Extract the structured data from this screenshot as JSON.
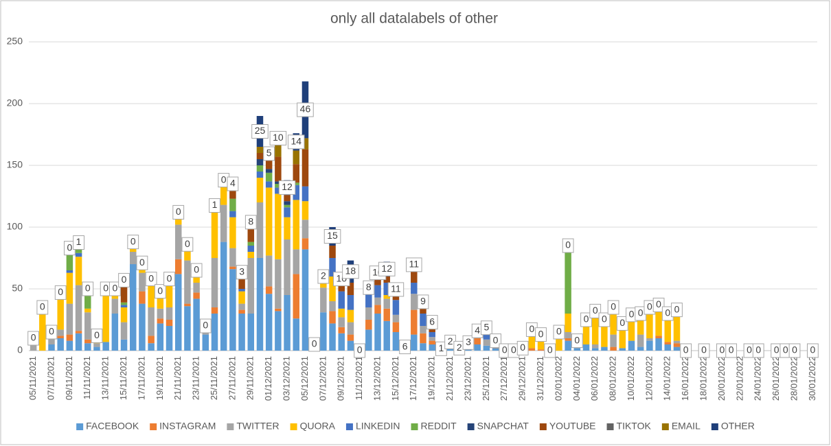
{
  "chart_data": {
    "type": "stacked_bar",
    "title": "only all datalabels of other",
    "categories": [
      "05/11/2021",
      null,
      "07/11/2021",
      null,
      "09/11/2021",
      null,
      "11/11/2021",
      null,
      "13/11/2021",
      null,
      "15/11/2021",
      null,
      "17/11/2021",
      null,
      "19/11/2021",
      null,
      "21/11/2021",
      null,
      "23/11/2021",
      null,
      "25/11/2021",
      null,
      "27/11/2021",
      null,
      "29/11/2021",
      null,
      "01/12/2021",
      null,
      "03/12/2021",
      null,
      "05/12/2021",
      null,
      "07/12/2021",
      null,
      "09/12/2021",
      null,
      "11/12/2021",
      null,
      "13/12/2021",
      null,
      "15/12/2021",
      null,
      "17/12/2021",
      null,
      "19/12/2021",
      null,
      "21/12/2021",
      null,
      "23/12/2021",
      null,
      "25/12/2021",
      null,
      "27/12/2021",
      null,
      "29/12/2021",
      null,
      "31/12/2021",
      null,
      "02/01/2022",
      null,
      "04/01/2022",
      null,
      "06/01/2022",
      null,
      "08/01/2022",
      null,
      "10/01/2022",
      null,
      "12/01/2022",
      null,
      "14/01/2022",
      null,
      "16/01/2022",
      null,
      "18/01/2022",
      null,
      "20/01/2022",
      null,
      "22/01/2022",
      null,
      "24/01/2022",
      null,
      "26/01/2022",
      null,
      "28/01/2022",
      null,
      "30/01/2022"
    ],
    "series": [
      {
        "name": "FACEBOOK",
        "color": "#5b9bd5",
        "values": [
          0,
          0,
          5,
          10,
          8,
          14,
          6,
          3,
          7,
          30,
          9,
          70,
          38,
          6,
          22,
          20,
          62,
          36,
          42,
          13,
          30,
          88,
          66,
          30,
          30,
          75,
          46,
          32,
          45,
          26,
          82,
          5,
          31,
          22,
          14,
          8,
          0,
          17,
          30,
          24,
          15,
          0,
          13,
          6,
          5,
          1,
          3,
          0,
          3,
          5,
          4,
          2,
          0,
          0,
          0,
          0,
          0,
          0,
          0,
          8,
          2,
          5,
          2,
          3,
          0,
          2,
          8,
          3,
          8,
          10,
          5,
          3,
          0,
          null,
          null,
          null,
          null,
          null,
          null,
          null,
          null,
          null,
          null,
          null,
          null,
          null,
          null
        ]
      },
      {
        "name": "INSTAGRAM",
        "color": "#ed7d31",
        "values": [
          0,
          0,
          0,
          2,
          5,
          2,
          3,
          0,
          0,
          0,
          0,
          0,
          10,
          6,
          4,
          5,
          12,
          2,
          5,
          0,
          5,
          0,
          2,
          3,
          0,
          0,
          6,
          2,
          0,
          36,
          9,
          0,
          0,
          10,
          5,
          5,
          0,
          8,
          7,
          10,
          8,
          0,
          20,
          8,
          3,
          0,
          0,
          0,
          0,
          5,
          0,
          2,
          0,
          0,
          0,
          2,
          1,
          0,
          0,
          2,
          0,
          0,
          0,
          0,
          3,
          0,
          0,
          0,
          0,
          2,
          2,
          3,
          0,
          null,
          null,
          null,
          null,
          null,
          null,
          null,
          null,
          null,
          null,
          null,
          null,
          null,
          null
        ]
      },
      {
        "name": "TWITTER",
        "color": "#a5a5a5",
        "values": [
          10,
          0,
          5,
          5,
          25,
          37,
          22,
          3,
          0,
          12,
          14,
          10,
          15,
          23,
          8,
          10,
          28,
          35,
          8,
          7,
          40,
          30,
          15,
          5,
          45,
          45,
          25,
          40,
          45,
          20,
          15,
          0,
          20,
          8,
          8,
          10,
          0,
          10,
          6,
          8,
          6,
          0,
          13,
          6,
          3,
          0,
          3,
          1,
          2,
          4,
          5,
          0,
          0,
          0,
          0,
          0,
          0,
          0,
          0,
          5,
          2,
          0,
          3,
          0,
          10,
          0,
          0,
          10,
          2,
          0,
          0,
          2,
          0,
          null,
          null,
          null,
          null,
          null,
          null,
          null,
          null,
          null,
          null,
          null,
          null,
          null,
          null
        ]
      },
      {
        "name": "QUORA",
        "color": "#ffc000",
        "values": [
          0,
          35,
          5,
          30,
          25,
          23,
          3,
          6,
          43,
          8,
          12,
          8,
          5,
          20,
          10,
          20,
          10,
          13,
          8,
          0,
          40,
          15,
          25,
          10,
          5,
          20,
          55,
          53,
          18,
          40,
          15,
          0,
          8,
          20,
          7,
          10,
          0,
          0,
          0,
          3,
          0,
          0,
          0,
          0,
          0,
          0,
          0,
          0,
          0,
          0,
          0,
          0,
          0,
          0,
          2,
          15,
          12,
          0,
          15,
          15,
          0,
          20,
          27,
          22,
          22,
          20,
          21,
          17,
          25,
          25,
          23,
          25,
          0,
          null,
          null,
          null,
          null,
          null,
          null,
          null,
          null,
          null,
          null,
          null,
          null,
          null,
          null
        ]
      },
      {
        "name": "LINKEDIN",
        "color": "#4472c4",
        "values": [
          0,
          0,
          0,
          0,
          2,
          3,
          0,
          0,
          0,
          0,
          2,
          0,
          3,
          0,
          0,
          0,
          0,
          0,
          2,
          0,
          2,
          5,
          5,
          2,
          5,
          5,
          5,
          5,
          8,
          12,
          12,
          0,
          0,
          15,
          14,
          12,
          0,
          12,
          10,
          10,
          12,
          0,
          9,
          10,
          4,
          0,
          0,
          0,
          0,
          0,
          4,
          0,
          0,
          0,
          0,
          0,
          0,
          0,
          0,
          0,
          0,
          0,
          0,
          0,
          0,
          0,
          0,
          0,
          0,
          0,
          0,
          0,
          0,
          null,
          null,
          null,
          null,
          null,
          null,
          null,
          null,
          null,
          null,
          null,
          null,
          null,
          null
        ]
      },
      {
        "name": "REDDIT",
        "color": "#70ad47",
        "values": [
          0,
          0,
          0,
          0,
          13,
          8,
          16,
          0,
          0,
          0,
          2,
          0,
          0,
          3,
          0,
          3,
          0,
          0,
          0,
          0,
          0,
          0,
          10,
          0,
          3,
          5,
          7,
          3,
          2,
          2,
          0,
          0,
          0,
          0,
          0,
          0,
          0,
          0,
          0,
          0,
          0,
          0,
          0,
          0,
          0,
          0,
          0,
          0,
          0,
          0,
          0,
          4,
          0,
          0,
          0,
          0,
          0,
          0,
          0,
          55,
          4,
          0,
          0,
          0,
          0,
          0,
          0,
          0,
          0,
          0,
          0,
          0,
          0,
          null,
          null,
          null,
          null,
          null,
          null,
          null,
          null,
          null,
          null,
          null,
          null,
          null,
          null
        ]
      },
      {
        "name": "SNAPCHAT",
        "color": "#264478",
        "values": [
          0,
          0,
          0,
          0,
          5,
          0,
          0,
          0,
          0,
          0,
          0,
          0,
          0,
          0,
          2,
          0,
          0,
          0,
          0,
          0,
          0,
          0,
          0,
          0,
          0,
          5,
          3,
          2,
          3,
          0,
          0,
          0,
          0,
          0,
          0,
          0,
          0,
          0,
          0,
          0,
          0,
          0,
          0,
          0,
          0,
          0,
          0,
          0,
          0,
          0,
          0,
          0,
          0,
          0,
          0,
          0,
          0,
          0,
          0,
          0,
          0,
          0,
          0,
          0,
          0,
          0,
          0,
          0,
          0,
          0,
          0,
          0,
          0,
          null,
          null,
          null,
          null,
          null,
          null,
          null,
          null,
          null,
          null,
          null,
          null,
          null,
          null
        ]
      },
      {
        "name": "YOUTUBE",
        "color": "#9e480e",
        "values": [
          0,
          0,
          0,
          0,
          0,
          0,
          0,
          0,
          0,
          0,
          18,
          0,
          0,
          0,
          2,
          0,
          0,
          0,
          0,
          0,
          0,
          0,
          10,
          12,
          12,
          5,
          10,
          20,
          5,
          15,
          30,
          0,
          0,
          10,
          5,
          10,
          0,
          0,
          5,
          5,
          3,
          0,
          9,
          5,
          5,
          0,
          0,
          0,
          0,
          0,
          3,
          0,
          0,
          0,
          0,
          0,
          0,
          0,
          0,
          0,
          0,
          0,
          0,
          0,
          0,
          0,
          0,
          0,
          0,
          0,
          0,
          0,
          0,
          null,
          null,
          null,
          null,
          null,
          null,
          null,
          null,
          null,
          null,
          null,
          null,
          null,
          null
        ]
      },
      {
        "name": "TIKTOK",
        "color": "#636363",
        "values": [
          0,
          0,
          0,
          0,
          0,
          0,
          0,
          0,
          0,
          0,
          0,
          0,
          0,
          0,
          0,
          0,
          0,
          0,
          0,
          0,
          0,
          0,
          0,
          0,
          0,
          0,
          0,
          0,
          0,
          0,
          0,
          0,
          0,
          0,
          0,
          0,
          0,
          0,
          0,
          0,
          0,
          0,
          0,
          0,
          0,
          0,
          0,
          0,
          0,
          0,
          0,
          0,
          0,
          0,
          0,
          0,
          0,
          0,
          0,
          0,
          0,
          0,
          0,
          0,
          0,
          0,
          0,
          0,
          0,
          0,
          0,
          0,
          0,
          null,
          null,
          null,
          null,
          null,
          null,
          null,
          null,
          null,
          null,
          null,
          null,
          null,
          null
        ]
      },
      {
        "name": "EMAIL",
        "color": "#997300",
        "values": [
          0,
          0,
          0,
          0,
          0,
          0,
          0,
          0,
          0,
          0,
          0,
          0,
          0,
          0,
          0,
          0,
          0,
          0,
          0,
          0,
          0,
          0,
          0,
          0,
          0,
          5,
          0,
          10,
          0,
          11,
          9,
          0,
          0,
          0,
          0,
          0,
          0,
          0,
          0,
          0,
          0,
          0,
          0,
          0,
          0,
          0,
          0,
          0,
          0,
          0,
          0,
          0,
          0,
          0,
          0,
          0,
          0,
          0,
          0,
          0,
          0,
          0,
          0,
          0,
          0,
          0,
          0,
          0,
          0,
          0,
          0,
          0,
          0,
          null,
          null,
          null,
          null,
          null,
          null,
          null,
          null,
          null,
          null,
          null,
          null,
          null,
          null
        ]
      },
      {
        "name": "OTHER",
        "color": "#1f3f7a",
        "data_labels": true,
        "values": [
          0,
          0,
          0,
          0,
          0,
          1,
          0,
          0,
          0,
          0,
          0,
          0,
          0,
          0,
          0,
          0,
          0,
          0,
          0,
          0,
          1,
          0,
          4,
          3,
          8,
          25,
          5,
          10,
          12,
          14,
          46,
          0,
          2,
          15,
          10,
          18,
          0,
          8,
          10,
          12,
          11,
          6,
          11,
          9,
          6,
          1,
          2,
          2,
          3,
          4,
          5,
          0,
          0,
          0,
          0,
          0,
          0,
          0,
          0,
          0,
          0,
          0,
          0,
          0,
          0,
          0,
          0,
          0,
          0,
          0,
          0,
          0,
          0,
          null,
          0,
          null,
          0,
          0,
          null,
          0,
          0,
          null,
          0,
          0,
          0,
          null,
          0
        ]
      }
    ],
    "ylim": [
      0,
      250
    ],
    "yticks": [
      0,
      50,
      100,
      150,
      200,
      250
    ],
    "grid": true,
    "legend": "bottom"
  }
}
